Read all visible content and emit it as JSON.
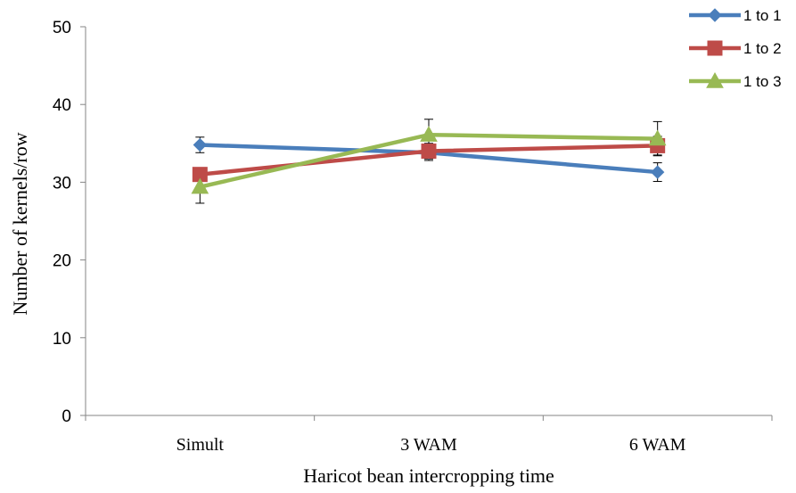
{
  "chart_data": {
    "type": "line",
    "title": "",
    "xlabel": "Haricot bean intercropping time",
    "ylabel": "Number of kernels/row",
    "categories": [
      "Simult",
      "3 WAM",
      "6 WAM"
    ],
    "ylim": [
      0,
      50
    ],
    "yticks": [
      0,
      10,
      20,
      30,
      40,
      50
    ],
    "grid": false,
    "legend_position": "top-right",
    "series": [
      {
        "name": "1 to 1",
        "color": "#4a7ebb",
        "marker": "diamond",
        "values": [
          34.8,
          33.8,
          31.3
        ],
        "errors": [
          1.0,
          1.0,
          1.2
        ]
      },
      {
        "name": "1 to 2",
        "color": "#be4b48",
        "marker": "square",
        "values": [
          31.0,
          34.0,
          34.7
        ],
        "errors": [
          0,
          1.0,
          1.2
        ]
      },
      {
        "name": "1 to 3",
        "color": "#98b954",
        "marker": "triangle",
        "values": [
          29.4,
          36.1,
          35.6
        ],
        "errors": [
          2.1,
          2.0,
          2.2
        ]
      }
    ]
  }
}
